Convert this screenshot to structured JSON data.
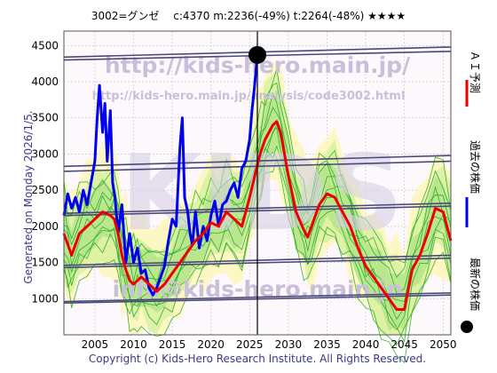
{
  "header": {
    "title": "3002=グンゼ　 c:4370  m:2236(-49%)  t:2264(-48%)  ★★★★"
  },
  "left_label": "Generated on Monday 2026/1/5.",
  "footer": "Copyright (c) Kids-Hero Research Institute. All Rights Reserved.",
  "watermarks": {
    "url_main": "http://kids-hero.main.jp/",
    "url_page": "http://kids-hero.main.jp/analysis/code3002.html",
    "email": "info@kids-hero.main.jp",
    "logo": "KIDS"
  },
  "legend": [
    {
      "label": "ＡＩ予測",
      "color": "#ee0000",
      "marker": "line"
    },
    {
      "label": "過去の株価",
      "color": "#0000ee",
      "marker": "line"
    },
    {
      "label": "最新の株価",
      "color": "#000000",
      "marker": "dot"
    }
  ],
  "chart_data": {
    "type": "line",
    "xlim": [
      2001,
      2051
    ],
    "ylim": [
      500,
      4700
    ],
    "xticks": [
      2005,
      2010,
      2015,
      2020,
      2025,
      2030,
      2035,
      2040,
      2045,
      2050
    ],
    "yticks": [
      1000,
      1500,
      2000,
      2500,
      3000,
      3500,
      4000,
      4500
    ],
    "grid": true,
    "now_year": 2026.0,
    "latest_point": {
      "x": 2026.0,
      "y": 4370
    },
    "trend_lines": [
      {
        "x": [
          2001,
          2051
        ],
        "y": [
          4340,
          4480
        ]
      },
      {
        "x": [
          2001,
          2051
        ],
        "y": [
          4300,
          4420
        ]
      },
      {
        "x": [
          2001,
          2051
        ],
        "y": [
          2830,
          2980
        ]
      },
      {
        "x": [
          2001,
          2051
        ],
        "y": [
          2760,
          2900
        ]
      },
      {
        "x": [
          2001,
          2051
        ],
        "y": [
          2180,
          2320
        ]
      },
      {
        "x": [
          2001,
          2051
        ],
        "y": [
          2150,
          2280
        ]
      },
      {
        "x": [
          2001,
          2051
        ],
        "y": [
          1460,
          1600
        ]
      },
      {
        "x": [
          2001,
          2051
        ],
        "y": [
          1430,
          1560
        ]
      },
      {
        "x": [
          2001,
          2051
        ],
        "y": [
          960,
          1080
        ]
      },
      {
        "x": [
          2001,
          2051
        ],
        "y": [
          940,
          1050
        ]
      }
    ],
    "series": [
      {
        "name": "過去の株価",
        "color": "#0000ee",
        "x": [
          2001,
          2001.5,
          2002,
          2002.5,
          2003,
          2003.5,
          2004,
          2004.5,
          2005,
          2005.3,
          2005.6,
          2006,
          2006.3,
          2006.6,
          2007,
          2007.3,
          2007.6,
          2008,
          2008.5,
          2009,
          2009.5,
          2010,
          2010.5,
          2011,
          2011.5,
          2012,
          2012.5,
          2013,
          2013.5,
          2014,
          2014.5,
          2015,
          2015.5,
          2016,
          2016.3,
          2016.6,
          2017,
          2017.3,
          2017.6,
          2018,
          2018.5,
          2019,
          2019.5,
          2020,
          2020.5,
          2021,
          2021.5,
          2022,
          2022.5,
          2023,
          2023.5,
          2024,
          2024.5,
          2025,
          2025.3,
          2025.6,
          2026
        ],
        "y": [
          2150,
          2450,
          2250,
          2400,
          2200,
          2500,
          2300,
          2600,
          2900,
          3500,
          3950,
          3300,
          3700,
          2900,
          3600,
          2600,
          2400,
          1900,
          2300,
          1500,
          1900,
          1500,
          1700,
          1350,
          1400,
          1150,
          1050,
          1150,
          1300,
          1450,
          1800,
          2100,
          2000,
          3100,
          3500,
          2400,
          2200,
          1900,
          1750,
          2200,
          1700,
          2000,
          1800,
          2150,
          2350,
          2000,
          2300,
          2350,
          2500,
          2600,
          2400,
          2800,
          2900,
          3200,
          3600,
          3900,
          4370
        ]
      },
      {
        "name": "ＡＩ予測",
        "color": "#ee0000",
        "x": [
          2001,
          2001.5,
          2002,
          2003,
          2004,
          2005,
          2006,
          2007,
          2007.5,
          2008,
          2008.5,
          2009,
          2009.5,
          2010,
          2010.5,
          2011,
          2012,
          2013,
          2014,
          2015,
          2016,
          2017,
          2018,
          2019,
          2020,
          2021,
          2022,
          2023,
          2024,
          2025,
          2026,
          2026.5,
          2027,
          2028,
          2028.5,
          2029,
          2030,
          2031,
          2032,
          2032.5,
          2033,
          2034,
          2035,
          2036,
          2037,
          2038,
          2039,
          2040,
          2041,
          2042,
          2043,
          2044,
          2045,
          2046,
          2047,
          2048,
          2049,
          2050,
          2051
        ],
        "y": [
          1900,
          1750,
          1600,
          1900,
          2000,
          2100,
          2200,
          2150,
          2100,
          1900,
          1600,
          1400,
          1250,
          1200,
          1250,
          1300,
          1200,
          1100,
          1200,
          1350,
          1500,
          1650,
          1800,
          1900,
          2050,
          2000,
          2200,
          2100,
          2000,
          2400,
          2850,
          3050,
          3200,
          3400,
          3450,
          3300,
          2700,
          2200,
          1950,
          1850,
          2000,
          2300,
          2450,
          2400,
          2200,
          2000,
          1700,
          1450,
          1300,
          1150,
          1000,
          850,
          850,
          1400,
          1600,
          1900,
          2250,
          2200,
          1800
        ]
      }
    ]
  }
}
